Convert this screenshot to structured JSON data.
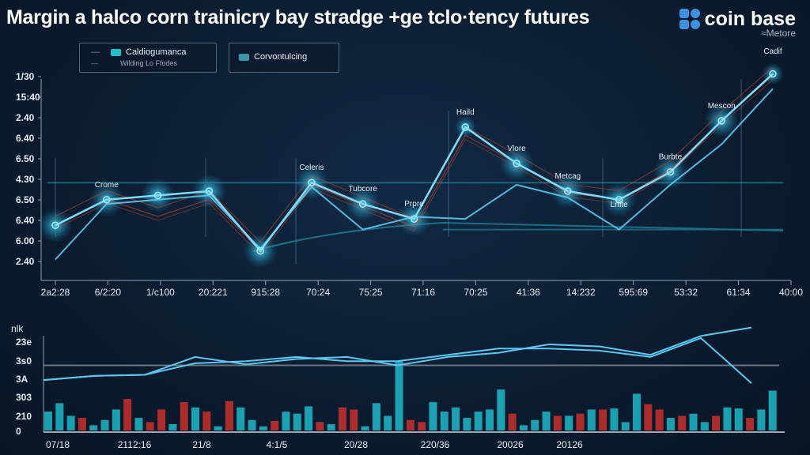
{
  "title": "Margin a halco corn trainicry bay stradge +ge tclo·tency futures",
  "logo": {
    "name": "coin base",
    "sub": "≈Metore"
  },
  "colors": {
    "accent": "#4fc3e8",
    "line_bright": "#5cc8f0",
    "line_red": "#d0452f",
    "bar_teal": "#1fb8c8",
    "bar_red": "#c8302c",
    "ref_line": "#1d6f86"
  },
  "legend": {
    "items": [
      {
        "label": "Caldiogumanca",
        "sub": "Wilding Lo Ffodes"
      },
      {
        "label": "Corvontulcing"
      }
    ]
  },
  "chart_data": [
    {
      "type": "line",
      "title": "",
      "ylim": [
        0,
        100
      ],
      "y_tick_labels": [
        "1/30",
        "15:40",
        "2.40",
        "6.40",
        "6.50",
        "4.30",
        "6.50",
        "6.40",
        "6.00",
        "2.40"
      ],
      "x_tick_labels": [
        "2a2:28",
        "6/2:20",
        "1/c100",
        "20:221",
        "915:28",
        "70:24",
        "75:25",
        "71:16",
        "70:25",
        "41:36",
        "14:232",
        "595:69",
        "53:32",
        "61:34",
        "40:00"
      ],
      "grid": false,
      "series": [
        {
          "name": "Caldiogumanca",
          "values": [
            24,
            36,
            38,
            40,
            12,
            44,
            34,
            27,
            70,
            53,
            40,
            36,
            49,
            73,
            95
          ]
        },
        {
          "name": "Corvontulcing",
          "values": [
            8,
            34,
            36,
            38,
            13,
            42,
            22,
            28,
            27,
            43,
            37,
            22,
            43,
            62,
            88
          ]
        },
        {
          "name": "Wilding Lo Ffodes",
          "values": [
            26,
            38,
            30,
            38,
            14,
            45,
            35,
            25,
            68,
            55,
            41,
            38,
            52,
            75,
            96
          ]
        }
      ],
      "reference_lines": [
        44,
        22
      ],
      "annotations": [
        {
          "index": 1,
          "text": "Crome"
        },
        {
          "index": 5,
          "text": "Celeris"
        },
        {
          "index": 6,
          "text": "Tubcore"
        },
        {
          "index": 7,
          "text": "Prpre"
        },
        {
          "index": 8,
          "text": "Haild"
        },
        {
          "index": 9,
          "text": "Vlore"
        },
        {
          "index": 10,
          "text": "Metcag"
        },
        {
          "index": 11,
          "text": "Lrfite",
          "extra": true
        },
        {
          "index": 12,
          "text": "Burbte"
        },
        {
          "index": 13,
          "text": "Mescon"
        },
        {
          "index": 14,
          "text": "Cadif"
        }
      ]
    },
    {
      "type": "bar",
      "title": "",
      "ylim": [
        0,
        100
      ],
      "y_label": "nlk",
      "y_tick_labels": [
        "23e",
        "3s0",
        "3A",
        "303",
        "210",
        "0"
      ],
      "x_tick_labels": [
        "07/18",
        "2112:16",
        "21/8",
        "4:1/5",
        "20/28",
        "220/36",
        "20026",
        "20126"
      ],
      "lines": [
        {
          "name": "upper",
          "values": [
            48,
            52,
            53,
            70,
            63,
            68,
            70,
            62,
            70,
            74,
            82,
            80,
            72,
            90,
            98
          ]
        },
        {
          "name": "lower",
          "values": [
            48,
            52,
            53,
            64,
            66,
            70,
            66,
            66,
            72,
            78,
            78,
            76,
            70,
            88,
            45
          ]
        }
      ],
      "reference_line": 62,
      "bars": [
        {
          "v": 18,
          "c": "t"
        },
        {
          "v": 26,
          "c": "t"
        },
        {
          "v": 14,
          "c": "t"
        },
        {
          "v": 12,
          "c": "r"
        },
        {
          "v": 5,
          "c": "t"
        },
        {
          "v": 10,
          "c": "t"
        },
        {
          "v": 20,
          "c": "t"
        },
        {
          "v": 30,
          "c": "r"
        },
        {
          "v": 12,
          "c": "t"
        },
        {
          "v": 8,
          "c": "r"
        },
        {
          "v": 20,
          "c": "r"
        },
        {
          "v": 6,
          "c": "t"
        },
        {
          "v": 27,
          "c": "r"
        },
        {
          "v": 22,
          "c": "t"
        },
        {
          "v": 18,
          "c": "r"
        },
        {
          "v": 4,
          "c": "t"
        },
        {
          "v": 28,
          "c": "r"
        },
        {
          "v": 22,
          "c": "t"
        },
        {
          "v": 10,
          "c": "t"
        },
        {
          "v": 4,
          "c": "t"
        },
        {
          "v": 9,
          "c": "r"
        },
        {
          "v": 18,
          "c": "t"
        },
        {
          "v": 16,
          "c": "t"
        },
        {
          "v": 23,
          "c": "t"
        },
        {
          "v": 8,
          "c": "r"
        },
        {
          "v": 6,
          "c": "t"
        },
        {
          "v": 22,
          "c": "r"
        },
        {
          "v": 20,
          "c": "r"
        },
        {
          "v": 4,
          "c": "t"
        },
        {
          "v": 26,
          "c": "t"
        },
        {
          "v": 14,
          "c": "t"
        },
        {
          "v": 66,
          "c": "t"
        },
        {
          "v": 10,
          "c": "r"
        },
        {
          "v": 8,
          "c": "r"
        },
        {
          "v": 27,
          "c": "t"
        },
        {
          "v": 18,
          "c": "t"
        },
        {
          "v": 22,
          "c": "t"
        },
        {
          "v": 12,
          "c": "t"
        },
        {
          "v": 18,
          "c": "t"
        },
        {
          "v": 20,
          "c": "t"
        },
        {
          "v": 39,
          "c": "t"
        },
        {
          "v": 16,
          "c": "r"
        },
        {
          "v": 5,
          "c": "t"
        },
        {
          "v": 10,
          "c": "t"
        },
        {
          "v": 18,
          "c": "t"
        },
        {
          "v": 14,
          "c": "r"
        },
        {
          "v": 14,
          "c": "t"
        },
        {
          "v": 16,
          "c": "r"
        },
        {
          "v": 20,
          "c": "t"
        },
        {
          "v": 20,
          "c": "r"
        },
        {
          "v": 21,
          "c": "t"
        },
        {
          "v": 8,
          "c": "t"
        },
        {
          "v": 35,
          "c": "t"
        },
        {
          "v": 25,
          "c": "r"
        },
        {
          "v": 20,
          "c": "r"
        },
        {
          "v": 12,
          "c": "t"
        },
        {
          "v": 14,
          "c": "r"
        },
        {
          "v": 16,
          "c": "t"
        },
        {
          "v": 8,
          "c": "t"
        },
        {
          "v": 14,
          "c": "r"
        },
        {
          "v": 22,
          "c": "t"
        },
        {
          "v": 21,
          "c": "t"
        },
        {
          "v": 12,
          "c": "r"
        },
        {
          "v": 20,
          "c": "t"
        },
        {
          "v": 38,
          "c": "t"
        }
      ]
    }
  ]
}
